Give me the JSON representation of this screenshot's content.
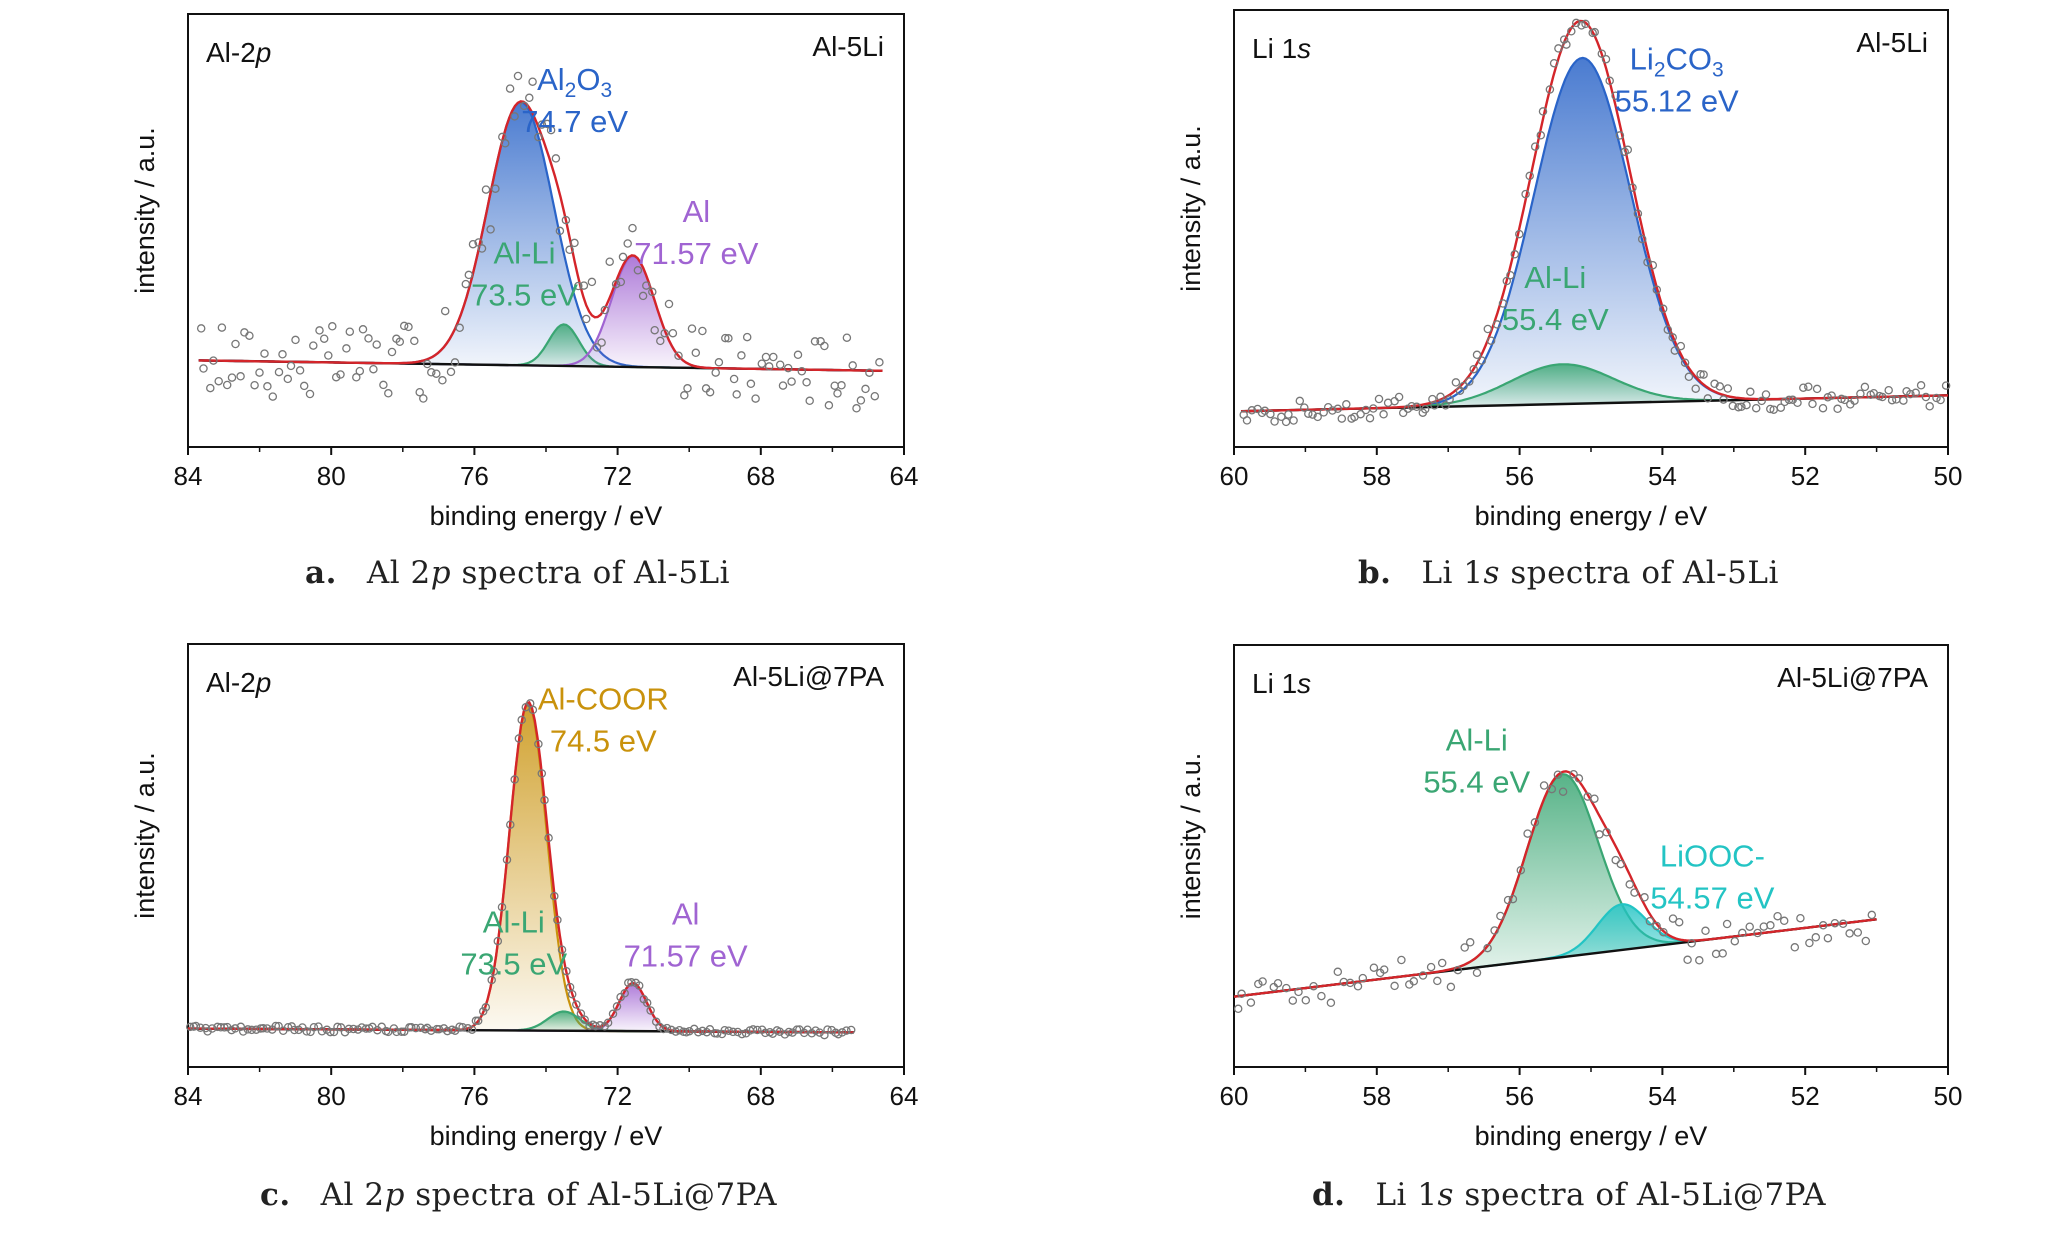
{
  "colors": {
    "fit": "#d4252a",
    "baseline": "#111111",
    "al2o3": "#2a64c8",
    "li2co3": "#2a64c8",
    "al_li": "#3aa673",
    "al_metal": "#a064d2",
    "al_coor": "#c9920c",
    "liooc": "#23c4c4",
    "points": "#777777"
  },
  "chart_data": [
    {
      "id": "a",
      "type": "line",
      "caption": {
        "letter": "a.",
        "pre": "Al 2",
        "em": "p",
        "post": " spectra of Al-5Li"
      },
      "corner_left": {
        "main": "Al-2",
        "em": "p"
      },
      "corner_right": "Al-5Li",
      "xlabel": "binding energy / eV",
      "ylabel": "intensity / a.u.",
      "xlim": [
        84,
        64
      ],
      "xticks": [
        84,
        80,
        76,
        72,
        68,
        64
      ],
      "ylim": [
        -0.25,
        1.0
      ],
      "grid": false,
      "baseline": [
        [
          83.7,
          0.0
        ],
        [
          64.6,
          -0.03
        ]
      ],
      "peaks": [
        {
          "name": "Al2O3",
          "center": 74.7,
          "height": 0.76,
          "sigma": 0.92,
          "color": "al2o3",
          "fill": true
        },
        {
          "name": "Al-Li",
          "center": 73.5,
          "height": 0.12,
          "sigma": 0.42,
          "color": "al_li",
          "fill": true
        },
        {
          "name": "Al",
          "center": 71.57,
          "height": 0.32,
          "sigma": 0.6,
          "color": "al_metal",
          "fill": true
        }
      ],
      "annotations": [
        {
          "line1": "Al",
          "line1_sub": "2",
          "line1_rest": "O",
          "line1_sub2": "3",
          "line2": "74.7 eV",
          "color": "al2o3",
          "x": 73.2,
          "y": 0.78
        },
        {
          "line1": "Al-Li",
          "line2": "73.5 eV",
          "color": "al_li",
          "x": 74.6,
          "y": 0.28
        },
        {
          "line1": "Al",
          "line2": "71.57 eV",
          "color": "al_metal",
          "x": 69.8,
          "y": 0.4
        }
      ]
    },
    {
      "id": "b",
      "type": "line",
      "caption": {
        "letter": "b.",
        "pre": "Li 1",
        "em": "s",
        "post": " spectra of Al-5Li"
      },
      "corner_left": {
        "main": "Li 1",
        "em": "s"
      },
      "corner_right": "Al-5Li",
      "xlabel": "binding energy / eV",
      "ylabel": "intensity / a.u.",
      "xlim": [
        60,
        50
      ],
      "xticks": [
        60,
        58,
        56,
        54,
        52,
        50
      ],
      "ylim": [
        -0.1,
        1.0
      ],
      "grid": false,
      "baseline": [
        [
          59.9,
          -0.01
        ],
        [
          50.0,
          0.03
        ]
      ],
      "peaks": [
        {
          "name": "Li2CO3",
          "center": 55.12,
          "height": 0.87,
          "sigma": 0.68,
          "color": "li2co3",
          "fill": true
        },
        {
          "name": "Al-Li",
          "center": 55.4,
          "height": 0.1,
          "sigma": 0.72,
          "color": "al_li",
          "fill": true
        }
      ],
      "annotations": [
        {
          "line1": "Li",
          "line1_sub": "2",
          "line1_rest": "CO",
          "line1_sub2": "3",
          "line2": "55.12 eV",
          "color": "li2co3",
          "x": 53.8,
          "y": 0.85
        },
        {
          "line1": "Al-Li",
          "line2": "55.4 eV",
          "color": "al_li",
          "x": 55.5,
          "y": 0.3
        }
      ]
    },
    {
      "id": "c",
      "type": "line",
      "caption": {
        "letter": "c.",
        "pre": "Al 2",
        "em": "p",
        "post": " spectra of Al-5Li@7PA"
      },
      "corner_left": {
        "main": "Al-2",
        "em": "p"
      },
      "corner_right": "Al-5Li@7PA",
      "xlabel": "binding energy / eV",
      "ylabel": "intensity / a.u.",
      "xlim": [
        84,
        64
      ],
      "xticks": [
        84,
        80,
        76,
        72,
        68,
        64
      ],
      "ylim": [
        -0.1,
        1.0
      ],
      "grid": false,
      "baseline": [
        [
          84.0,
          0.0
        ],
        [
          65.4,
          -0.01
        ]
      ],
      "peaks": [
        {
          "name": "Al-COOR",
          "center": 74.5,
          "height": 0.85,
          "sigma": 0.52,
          "color": "al_coor",
          "fill": true
        },
        {
          "name": "Al-Li",
          "center": 73.5,
          "height": 0.05,
          "sigma": 0.45,
          "color": "al_li",
          "fill": true
        },
        {
          "name": "Al",
          "center": 71.57,
          "height": 0.125,
          "sigma": 0.38,
          "color": "al_metal",
          "fill": true
        }
      ],
      "annotations": [
        {
          "line1": "Al-COOR",
          "line2": "74.5 eV",
          "color": "al_coor",
          "x": 72.4,
          "y": 0.83
        },
        {
          "line1": "Al-Li",
          "line2": "73.5 eV",
          "color": "al_li",
          "x": 74.9,
          "y": 0.25
        },
        {
          "line1": "Al",
          "line2": "71.57 eV",
          "color": "al_metal",
          "x": 70.1,
          "y": 0.27
        }
      ]
    },
    {
      "id": "d",
      "type": "line",
      "caption": {
        "letter": "d.",
        "pre": "Li 1",
        "em": "s",
        "post": " spectra of Al-5Li@7PA"
      },
      "corner_left": {
        "main": "Li 1",
        "em": "s"
      },
      "corner_right": "Al-5Li@7PA",
      "xlabel": "binding energy / eV",
      "ylabel": "intensity / a.u.",
      "xlim": [
        60,
        50
      ],
      "xticks": [
        60,
        58,
        56,
        54,
        52,
        50
      ],
      "ylim": [
        -0.2,
        1.0
      ],
      "grid": false,
      "baseline": [
        [
          60.0,
          0.0
        ],
        [
          51.0,
          0.22
        ]
      ],
      "peaks": [
        {
          "name": "Al-Li",
          "center": 55.4,
          "height": 0.52,
          "sigma": 0.5,
          "color": "al_li",
          "fill": true
        },
        {
          "name": "LiOOC-",
          "center": 54.57,
          "height": 0.13,
          "sigma": 0.34,
          "color": "liooc",
          "fill": true
        }
      ],
      "annotations": [
        {
          "line1": "Al-Li",
          "line2": "55.4 eV",
          "color": "al_li",
          "x": 56.6,
          "y": 0.7
        },
        {
          "line1": "LiOOC-",
          "line2": "54.57 eV",
          "color": "liooc",
          "x": 53.3,
          "y": 0.37
        }
      ]
    }
  ]
}
